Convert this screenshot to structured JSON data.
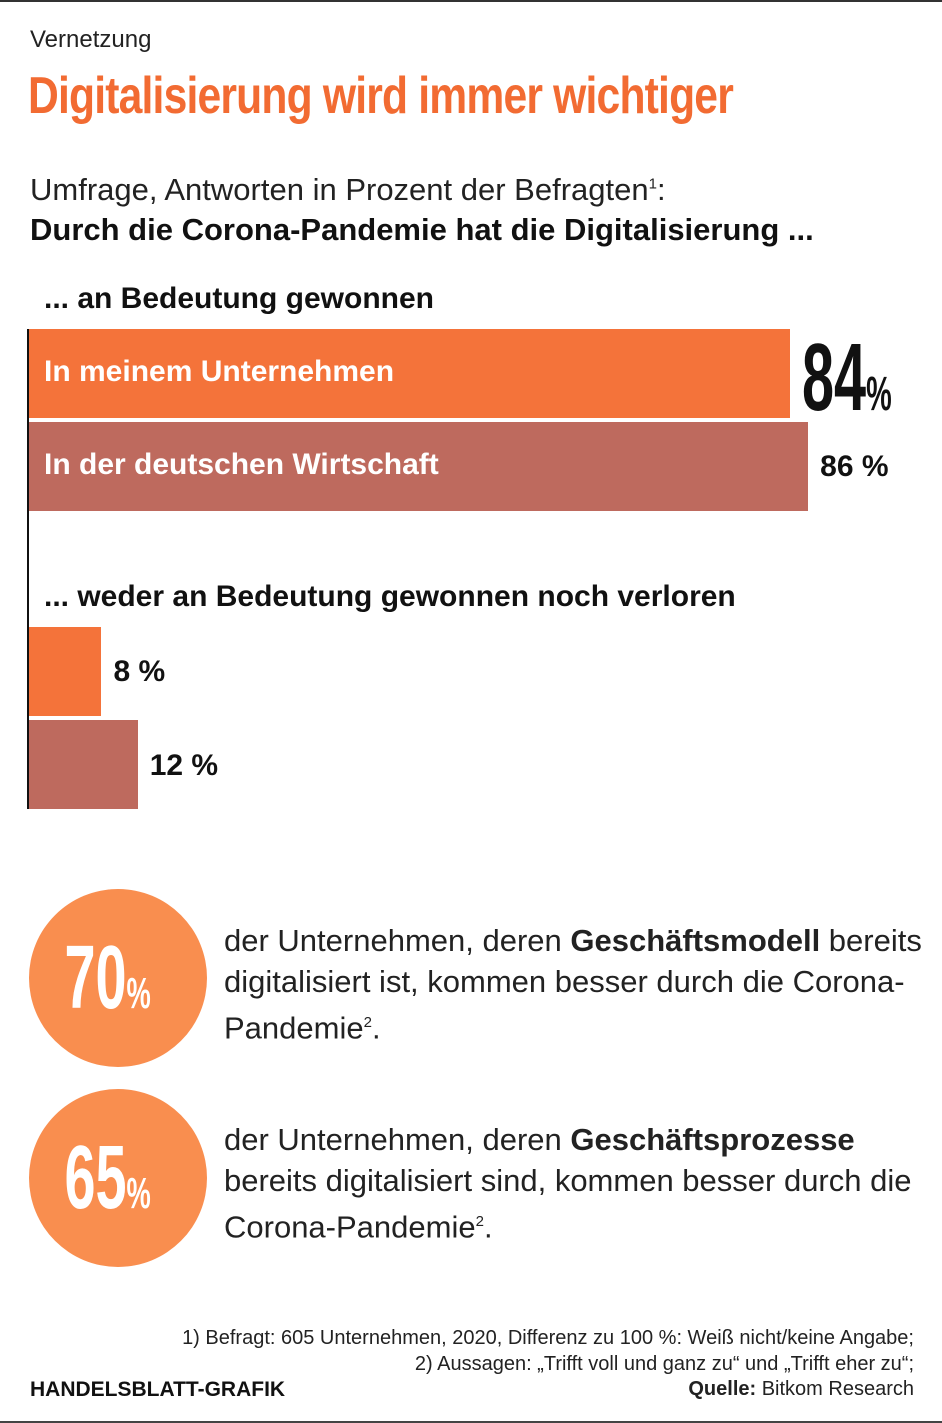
{
  "kicker": "Vernetzung",
  "title": "Digitalisierung wird immer wichtiger",
  "subtitle_line1": "Umfrage, Antworten in Prozent der Befragten",
  "subtitle_fn": "1",
  "subtitle_colon": ":",
  "subtitle_line2": "Durch die Corona-Pandemie hat die Digitalisierung ...",
  "chart_data": {
    "type": "bar",
    "orientation": "horizontal",
    "unit": "%",
    "xlim": [
      0,
      100
    ],
    "groups": [
      {
        "label": "... an Bedeutung gewonnen",
        "bars": [
          {
            "series": "In meinem Unternehmen",
            "value": 84,
            "label": "84",
            "pct": "%"
          },
          {
            "series": "In der deutschen Wirtschaft",
            "value": 86,
            "label": "86 %"
          }
        ]
      },
      {
        "label": "... weder an Bedeutung gewonnen noch verloren",
        "bars": [
          {
            "series": "In meinem Unternehmen",
            "value": 8,
            "label": "8 %"
          },
          {
            "series": "In der deutschen Wirtschaft",
            "value": 12,
            "label": "12 %"
          }
        ]
      }
    ],
    "colors": {
      "unternehmen": "#F4733A",
      "wirtschaft": "#BE6A5E"
    }
  },
  "stats": [
    {
      "num": "70",
      "pct": "%",
      "pre": "der Unternehmen, deren ",
      "bold": "Geschäftsmodell",
      "post": " bereits digitalisiert ist, kommen besser durch die Corona-Pandemie",
      "fn": "2",
      "end": "."
    },
    {
      "num": "65",
      "pct": "%",
      "pre": "der Unternehmen, deren ",
      "bold": "Geschäftsprozesse",
      "post": " bereits digitalisiert sind, kommen besser durch die Corona-Pandemie",
      "fn": "2",
      "end": "."
    }
  ],
  "footnote1": "1) Befragt: 605 Unternehmen, 2020, Differenz zu 100 %: Weiß nicht/keine Angabe;",
  "footnote2": "2) Aussagen: „Trifft voll und ganz zu“ und „Trifft eher zu“;",
  "source_label": "Quelle:",
  "source": " Bitkom Research",
  "brand": "HANDELSBLATT-GRAFIK"
}
